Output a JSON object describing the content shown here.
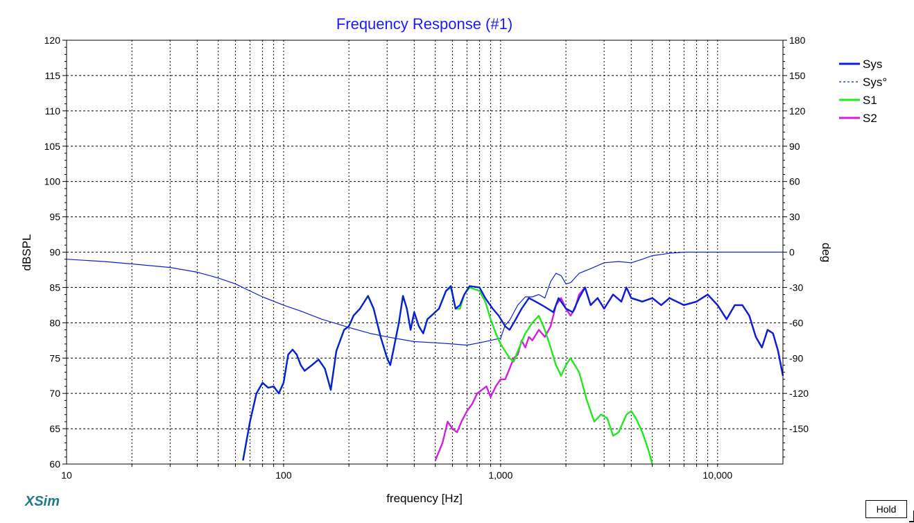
{
  "chart_data": {
    "type": "line",
    "title": "Frequency Response (#1)",
    "xlabel": "frequency [Hz]",
    "ylabel": "dBSPL",
    "y2label": "deg",
    "xscale": "log",
    "xlim": [
      10,
      20000
    ],
    "ylim": [
      60,
      120
    ],
    "y2lim": [
      -180,
      180
    ],
    "x_ticks": [
      {
        "value": 10,
        "label": "10"
      },
      {
        "value": 100,
        "label": "100"
      },
      {
        "value": 1000,
        "label": "1,000"
      },
      {
        "value": 10000,
        "label": "10,000"
      }
    ],
    "y_ticks": [
      {
        "value": 60,
        "label": "60"
      },
      {
        "value": 65,
        "label": "65"
      },
      {
        "value": 70,
        "label": "70"
      },
      {
        "value": 75,
        "label": "75"
      },
      {
        "value": 80,
        "label": "80"
      },
      {
        "value": 85,
        "label": "85"
      },
      {
        "value": 90,
        "label": "90"
      },
      {
        "value": 95,
        "label": "95"
      },
      {
        "value": 100,
        "label": "100"
      },
      {
        "value": 105,
        "label": "105"
      },
      {
        "value": 110,
        "label": "110"
      },
      {
        "value": 115,
        "label": "115"
      },
      {
        "value": 120,
        "label": "120"
      }
    ],
    "y2_ticks": [
      {
        "value": 180,
        "label": "180"
      },
      {
        "value": 150,
        "label": "150"
      },
      {
        "value": 120,
        "label": "120"
      },
      {
        "value": 90,
        "label": "90"
      },
      {
        "value": 60,
        "label": "60"
      },
      {
        "value": 30,
        "label": "30"
      },
      {
        "value": 0,
        "label": "0"
      },
      {
        "value": -30,
        "label": "-30"
      },
      {
        "value": -60,
        "label": "-60"
      },
      {
        "value": -90,
        "label": "-90"
      },
      {
        "value": -120,
        "label": "-120"
      },
      {
        "value": -150,
        "label": "-150"
      }
    ],
    "grid": true,
    "legend_position": "right",
    "series": [
      {
        "name": "Sys",
        "axis": "left",
        "color": "#0a1fd6",
        "style": "solid",
        "points": [
          [
            65,
            60.5
          ],
          [
            70,
            66
          ],
          [
            75,
            70
          ],
          [
            80,
            71.5
          ],
          [
            85,
            70.8
          ],
          [
            90,
            71
          ],
          [
            95,
            70
          ],
          [
            100,
            71.5
          ],
          [
            105,
            75.5
          ],
          [
            110,
            76.2
          ],
          [
            115,
            75.5
          ],
          [
            120,
            74
          ],
          [
            125,
            73.2
          ],
          [
            135,
            74
          ],
          [
            145,
            74.8
          ],
          [
            155,
            73.5
          ],
          [
            165,
            70.5
          ],
          [
            175,
            76
          ],
          [
            190,
            79
          ],
          [
            200,
            79.5
          ],
          [
            210,
            81
          ],
          [
            225,
            82
          ],
          [
            245,
            83.8
          ],
          [
            260,
            82
          ],
          [
            280,
            78
          ],
          [
            300,
            75
          ],
          [
            310,
            74
          ],
          [
            320,
            76
          ],
          [
            340,
            80
          ],
          [
            355,
            83.8
          ],
          [
            370,
            82
          ],
          [
            385,
            79
          ],
          [
            400,
            81.5
          ],
          [
            420,
            79.5
          ],
          [
            440,
            78.5
          ],
          [
            460,
            80.5
          ],
          [
            480,
            81
          ],
          [
            520,
            82
          ],
          [
            560,
            84.5
          ],
          [
            590,
            85.2
          ],
          [
            620,
            82
          ],
          [
            650,
            82.5
          ],
          [
            680,
            84
          ],
          [
            720,
            85.2
          ],
          [
            800,
            85
          ],
          [
            850,
            83.5
          ],
          [
            920,
            82
          ],
          [
            980,
            81
          ],
          [
            1050,
            79.5
          ],
          [
            1100,
            79
          ],
          [
            1150,
            80
          ],
          [
            1250,
            82
          ],
          [
            1350,
            83.5
          ],
          [
            1450,
            83
          ],
          [
            1550,
            82.5
          ],
          [
            1650,
            82
          ],
          [
            1750,
            81.5
          ],
          [
            1850,
            83.5
          ],
          [
            2000,
            82
          ],
          [
            2150,
            81.5
          ],
          [
            2300,
            83.5
          ],
          [
            2450,
            85
          ],
          [
            2600,
            82.5
          ],
          [
            2800,
            83.5
          ],
          [
            3000,
            82
          ],
          [
            3300,
            84
          ],
          [
            3600,
            83
          ],
          [
            3800,
            85
          ],
          [
            4000,
            83.5
          ],
          [
            4500,
            83
          ],
          [
            5000,
            83.5
          ],
          [
            5500,
            82.5
          ],
          [
            6000,
            83.5
          ],
          [
            7000,
            82.5
          ],
          [
            8000,
            83
          ],
          [
            9000,
            84
          ],
          [
            10000,
            82.5
          ],
          [
            11000,
            80.5
          ],
          [
            12000,
            82.5
          ],
          [
            13000,
            82.5
          ],
          [
            14000,
            81
          ],
          [
            15000,
            78
          ],
          [
            16000,
            76.5
          ],
          [
            17000,
            79
          ],
          [
            18000,
            78.5
          ],
          [
            19000,
            76
          ],
          [
            20000,
            72.5
          ]
        ]
      },
      {
        "name": "Sys°",
        "axis": "right",
        "color": "#0a1fd6",
        "style": "dashed",
        "points": [
          [
            10,
            -6
          ],
          [
            15,
            -8
          ],
          [
            20,
            -10
          ],
          [
            30,
            -13
          ],
          [
            40,
            -17
          ],
          [
            50,
            -22
          ],
          [
            60,
            -27
          ],
          [
            70,
            -33
          ],
          [
            80,
            -38
          ],
          [
            100,
            -45
          ],
          [
            120,
            -50
          ],
          [
            150,
            -57
          ],
          [
            200,
            -64
          ],
          [
            250,
            -69
          ],
          [
            300,
            -72
          ],
          [
            400,
            -76
          ],
          [
            500,
            -77
          ],
          [
            600,
            -78
          ],
          [
            700,
            -79
          ],
          [
            800,
            -77
          ],
          [
            900,
            -75
          ],
          [
            1000,
            -73
          ],
          [
            1050,
            -62
          ],
          [
            1100,
            -58
          ],
          [
            1200,
            -45
          ],
          [
            1300,
            -38
          ],
          [
            1400,
            -38
          ],
          [
            1500,
            -36
          ],
          [
            1600,
            -39
          ],
          [
            1700,
            -25
          ],
          [
            1800,
            -18
          ],
          [
            1900,
            -20
          ],
          [
            2000,
            -27
          ],
          [
            2100,
            -26
          ],
          [
            2300,
            -18
          ],
          [
            2600,
            -14
          ],
          [
            3000,
            -9
          ],
          [
            3500,
            -8
          ],
          [
            4000,
            -9
          ],
          [
            4500,
            -6
          ],
          [
            5000,
            -3
          ],
          [
            6000,
            -1
          ],
          [
            7000,
            0
          ],
          [
            8000,
            0
          ],
          [
            10000,
            0
          ],
          [
            15000,
            0
          ],
          [
            20000,
            0
          ]
        ]
      },
      {
        "name": "S1",
        "axis": "left",
        "color": "#22e61e",
        "style": "solid",
        "points": [
          [
            65,
            60.5
          ],
          [
            70,
            66
          ],
          [
            75,
            70
          ],
          [
            80,
            71.5
          ],
          [
            85,
            70.8
          ],
          [
            90,
            71
          ],
          [
            95,
            70
          ],
          [
            100,
            71.5
          ],
          [
            105,
            75.5
          ],
          [
            110,
            76.2
          ],
          [
            115,
            75.5
          ],
          [
            120,
            74
          ],
          [
            125,
            73.2
          ],
          [
            135,
            74
          ],
          [
            145,
            74.8
          ],
          [
            155,
            73.5
          ],
          [
            165,
            70.5
          ],
          [
            175,
            76
          ],
          [
            190,
            79
          ],
          [
            200,
            79.5
          ],
          [
            210,
            81
          ],
          [
            225,
            82
          ],
          [
            245,
            83.8
          ],
          [
            260,
            82
          ],
          [
            280,
            78
          ],
          [
            300,
            75
          ],
          [
            310,
            74
          ],
          [
            320,
            76
          ],
          [
            340,
            80
          ],
          [
            355,
            83.8
          ],
          [
            370,
            82
          ],
          [
            385,
            79
          ],
          [
            400,
            81.5
          ],
          [
            420,
            79.5
          ],
          [
            440,
            78.5
          ],
          [
            460,
            80.5
          ],
          [
            480,
            81
          ],
          [
            520,
            82
          ],
          [
            560,
            84.5
          ],
          [
            590,
            85
          ],
          [
            620,
            82
          ],
          [
            650,
            82
          ],
          [
            680,
            84
          ],
          [
            720,
            85
          ],
          [
            800,
            84.5
          ],
          [
            850,
            83
          ],
          [
            900,
            80.5
          ],
          [
            950,
            78.5
          ],
          [
            1000,
            77
          ],
          [
            1050,
            76
          ],
          [
            1100,
            75
          ],
          [
            1150,
            74.5
          ],
          [
            1200,
            76
          ],
          [
            1300,
            78.5
          ],
          [
            1400,
            80
          ],
          [
            1500,
            81
          ],
          [
            1600,
            79
          ],
          [
            1700,
            76.5
          ],
          [
            1800,
            74
          ],
          [
            1900,
            72.5
          ],
          [
            2000,
            74
          ],
          [
            2100,
            75
          ],
          [
            2300,
            73
          ],
          [
            2500,
            69
          ],
          [
            2700,
            66
          ],
          [
            2900,
            67
          ],
          [
            3100,
            66.5
          ],
          [
            3300,
            64
          ],
          [
            3500,
            64.5
          ],
          [
            3800,
            67
          ],
          [
            4000,
            67.5
          ],
          [
            4200,
            66.5
          ],
          [
            4500,
            64.5
          ],
          [
            4800,
            62
          ],
          [
            5000,
            60
          ]
        ]
      },
      {
        "name": "S2",
        "axis": "left",
        "color": "#d21ee1",
        "style": "solid",
        "points": [
          [
            500,
            60.5
          ],
          [
            540,
            63
          ],
          [
            570,
            66
          ],
          [
            600,
            65
          ],
          [
            630,
            64.5
          ],
          [
            660,
            66
          ],
          [
            700,
            67.5
          ],
          [
            740,
            68.5
          ],
          [
            780,
            70
          ],
          [
            820,
            70.5
          ],
          [
            860,
            71
          ],
          [
            900,
            69.5
          ],
          [
            950,
            71
          ],
          [
            1000,
            72
          ],
          [
            1050,
            72
          ],
          [
            1100,
            73.5
          ],
          [
            1150,
            75
          ],
          [
            1200,
            75.5
          ],
          [
            1250,
            77.5
          ],
          [
            1300,
            76.5
          ],
          [
            1350,
            78
          ],
          [
            1400,
            77.5
          ],
          [
            1500,
            79
          ],
          [
            1600,
            78
          ],
          [
            1700,
            79.5
          ],
          [
            1800,
            82.5
          ],
          [
            1900,
            83.5
          ],
          [
            2000,
            82
          ],
          [
            2100,
            81
          ],
          [
            2200,
            82
          ],
          [
            2300,
            84
          ],
          [
            2450,
            85
          ],
          [
            2600,
            82.5
          ],
          [
            2800,
            83.5
          ],
          [
            3000,
            82
          ],
          [
            3300,
            84
          ],
          [
            3600,
            83
          ],
          [
            3800,
            85
          ],
          [
            4000,
            83.5
          ],
          [
            4500,
            83
          ],
          [
            5000,
            83.5
          ],
          [
            5500,
            82.5
          ],
          [
            6000,
            83.5
          ],
          [
            7000,
            82.5
          ],
          [
            8000,
            83
          ],
          [
            9000,
            84
          ],
          [
            10000,
            82.5
          ],
          [
            11000,
            80.5
          ],
          [
            12000,
            82.5
          ],
          [
            13000,
            82.5
          ],
          [
            14000,
            81
          ],
          [
            15000,
            78
          ],
          [
            16000,
            76.5
          ],
          [
            17000,
            79
          ],
          [
            18000,
            78.5
          ],
          [
            19000,
            76
          ],
          [
            20000,
            72.5
          ]
        ]
      }
    ]
  },
  "footer": {
    "brand": "XSim",
    "hold_label": "Hold"
  }
}
